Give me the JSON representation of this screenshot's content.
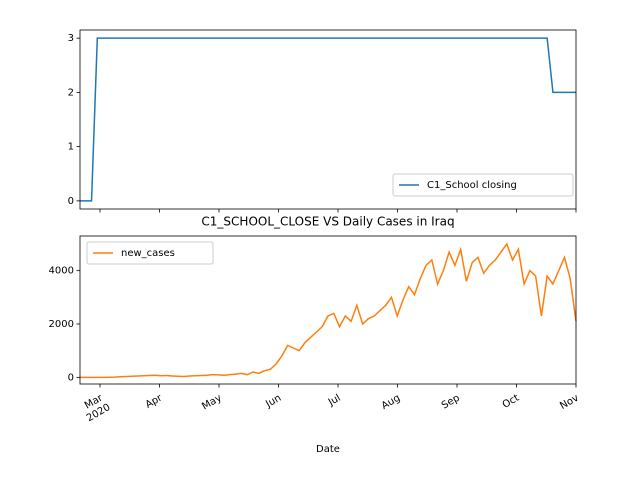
{
  "chart_data": [
    {
      "type": "line",
      "ylim": [
        -0.15,
        3.15
      ],
      "yticks": [
        0,
        1,
        2,
        3
      ],
      "legend": "lower right",
      "series": [
        {
          "name": "C1_School closing",
          "color": "#1f77b4",
          "values": [
            0,
            0,
            0,
            3,
            3,
            3,
            3,
            3,
            3,
            3,
            3,
            3,
            3,
            3,
            3,
            3,
            3,
            3,
            3,
            3,
            3,
            3,
            3,
            3,
            3,
            3,
            3,
            3,
            3,
            3,
            3,
            3,
            3,
            3,
            3,
            3,
            3,
            3,
            3,
            3,
            3,
            3,
            3,
            3,
            3,
            3,
            3,
            3,
            3,
            3,
            3,
            3,
            3,
            3,
            3,
            3,
            3,
            3,
            3,
            3,
            3,
            3,
            3,
            3,
            3,
            3,
            3,
            3,
            3,
            3,
            3,
            3,
            3,
            3,
            3,
            3,
            3,
            3,
            3,
            3,
            3,
            3,
            2,
            2,
            2,
            2,
            2
          ]
        }
      ]
    },
    {
      "type": "line",
      "title": "C1_SCHOOL_CLOSE VS Daily Cases in Iraq",
      "x_label": "Date",
      "ylim": [
        -250,
        5300
      ],
      "yticks": [
        0,
        2000,
        4000
      ],
      "legend": "upper left",
      "xticks": [
        "Mar",
        "Apr",
        "May",
        "Jun",
        "Jul",
        "Aug",
        "Sep",
        "Oct",
        "Nov"
      ],
      "xtick_year": "2020",
      "series": [
        {
          "name": "new_cases",
          "color": "#ff7f0e",
          "values": [
            0,
            0,
            0,
            0,
            0,
            5,
            10,
            20,
            30,
            40,
            50,
            60,
            70,
            80,
            60,
            70,
            50,
            40,
            30,
            50,
            60,
            70,
            80,
            100,
            90,
            80,
            100,
            120,
            150,
            100,
            200,
            150,
            250,
            300,
            500,
            800,
            1200,
            1100,
            1000,
            1300,
            1500,
            1700,
            1900,
            2300,
            2400,
            1900,
            2300,
            2100,
            2700,
            2000,
            2200,
            2300,
            2500,
            2700,
            3000,
            2300,
            2900,
            3400,
            3100,
            3700,
            4200,
            4400,
            3500,
            4000,
            4700,
            4200,
            4800,
            3600,
            4300,
            4500,
            3900,
            4200,
            4400,
            4700,
            5000,
            4400,
            4800,
            3500,
            4000,
            3800,
            2300,
            3800,
            3500,
            4000,
            4500,
            3700,
            2100
          ]
        }
      ]
    }
  ]
}
